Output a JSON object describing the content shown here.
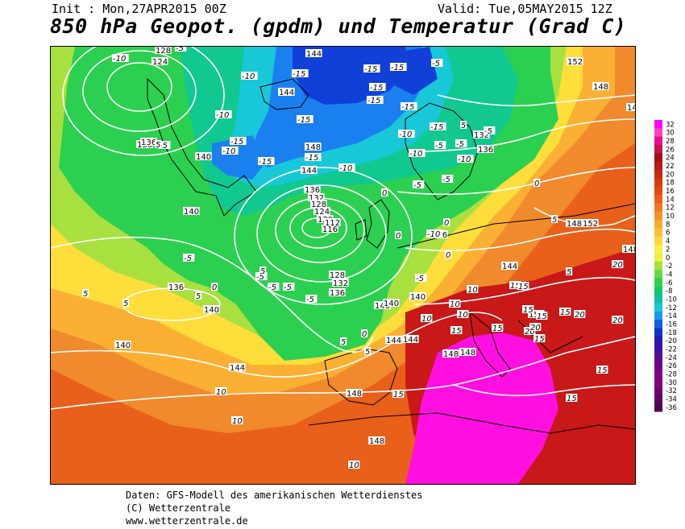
{
  "header": {
    "init": "Init : Mon,27APR2015 00Z",
    "valid": "Valid: Tue,05MAY2015 12Z",
    "title": "850 hPa Geopot. (gpdm) und Temperatur (Grad C)"
  },
  "footer": {
    "line1": "Daten: GFS-Modell des amerikanischen Wetterdienstes",
    "line2": "(C) Wetterzentrale",
    "line3": "www.wetterzentrale.de"
  },
  "legend": {
    "ticks": [
      "32",
      "30",
      "28",
      "26",
      "24",
      "22",
      "20",
      "18",
      "16",
      "14",
      "12",
      "10",
      "8",
      "6",
      "4",
      "2",
      "0",
      "-2",
      "-4",
      "-6",
      "-8",
      "-10",
      "-12",
      "-14",
      "-16",
      "-18",
      "-20",
      "-22",
      "-24",
      "-26",
      "-28",
      "-30",
      "-32",
      "-34",
      "-36"
    ],
    "colors": [
      "#ff00ff",
      "#ff40c0",
      "#e8108a",
      "#c81050",
      "#a01010",
      "#b81818",
      "#c82810",
      "#d83810",
      "#e04810",
      "#e86018",
      "#f07820",
      "#f89028",
      "#fba830",
      "#fdc038",
      "#ffd840",
      "#fff048",
      "#e8f040",
      "#a8e038",
      "#68d840",
      "#30d048",
      "#10c868",
      "#10c0a0",
      "#18c8d0",
      "#1898f0",
      "#1060e0",
      "#1030c8",
      "#2818b0",
      "#4010a0",
      "#580898",
      "#700090",
      "#800088",
      "#880080",
      "#700070",
      "#600060",
      "#500050"
    ]
  },
  "map": {
    "colors": {
      "background": "#e8601a",
      "orange": "#f08a2c",
      "yellow_orange": "#fbb034",
      "yellow": "#ffde3c",
      "lime": "#a8e040",
      "green": "#2cd050",
      "teal": "#10c890",
      "cyan": "#18c8d8",
      "blue": "#1a80f0",
      "deep_blue": "#1040d8",
      "red": "#c81818",
      "magenta": "#ff10e0",
      "contour": "#ffffff",
      "coast": "#000000"
    },
    "geopotential_labels": [
      {
        "t": "128"
      },
      {
        "t": "124"
      },
      {
        "t": "136"
      },
      {
        "t": "140"
      },
      {
        "t": "140"
      },
      {
        "t": "140"
      },
      {
        "t": "136"
      },
      {
        "t": "140"
      },
      {
        "t": "144"
      },
      {
        "t": "144"
      },
      {
        "t": "148"
      },
      {
        "t": "144"
      },
      {
        "t": "136"
      },
      {
        "t": "132"
      },
      {
        "t": "128"
      },
      {
        "t": "124"
      },
      {
        "t": "120"
      },
      {
        "t": "116"
      },
      {
        "t": "112"
      },
      {
        "t": "128"
      },
      {
        "t": "132"
      },
      {
        "t": "136"
      },
      {
        "t": "140"
      },
      {
        "t": "140"
      },
      {
        "t": "144"
      },
      {
        "t": "144"
      },
      {
        "t": "148"
      },
      {
        "t": "148"
      },
      {
        "t": "148"
      },
      {
        "t": "136"
      },
      {
        "t": "132"
      },
      {
        "t": "136"
      },
      {
        "t": "136"
      },
      {
        "t": "140"
      },
      {
        "t": "144"
      },
      {
        "t": "152"
      },
      {
        "t": "148"
      },
      {
        "t": "148"
      },
      {
        "t": "152"
      },
      {
        "t": "148"
      },
      {
        "t": "152"
      },
      {
        "t": "148"
      },
      {
        "t": "148"
      },
      {
        "t": "144"
      }
    ],
    "temperature_labels": [
      {
        "t": "-10"
      },
      {
        "t": "-5"
      },
      {
        "t": "-5"
      },
      {
        "t": "-10"
      },
      {
        "t": "-15"
      },
      {
        "t": "-15"
      },
      {
        "t": "-10"
      },
      {
        "t": "-10"
      },
      {
        "t": "-15"
      },
      {
        "t": "-15"
      },
      {
        "t": "-15"
      },
      {
        "t": "-10"
      },
      {
        "t": "-15"
      },
      {
        "t": "-15"
      },
      {
        "t": "-15"
      },
      {
        "t": "-15"
      },
      {
        "t": "-15"
      },
      {
        "t": "-5"
      },
      {
        "t": "-15"
      },
      {
        "t": "-10"
      },
      {
        "t": "-10"
      },
      {
        "t": "-5"
      },
      {
        "t": "-10"
      },
      {
        "t": "-10"
      },
      {
        "t": "-5"
      },
      {
        "t": "-5"
      },
      {
        "t": "-5"
      },
      {
        "t": "-5"
      },
      {
        "t": "-5"
      },
      {
        "t": "-5"
      },
      {
        "t": "-5"
      },
      {
        "t": "-5"
      },
      {
        "t": "-5"
      },
      {
        "t": "-5"
      },
      {
        "t": "5"
      },
      {
        "t": "5"
      },
      {
        "t": "5"
      },
      {
        "t": "5"
      },
      {
        "t": "5"
      },
      {
        "t": "0"
      },
      {
        "t": "0"
      },
      {
        "t": "0"
      },
      {
        "t": "0"
      },
      {
        "t": "0"
      },
      {
        "t": "0"
      },
      {
        "t": "0"
      },
      {
        "t": "5"
      },
      {
        "t": "5"
      },
      {
        "t": "5"
      },
      {
        "t": "5"
      },
      {
        "t": "10"
      },
      {
        "t": "10"
      },
      {
        "t": "10"
      },
      {
        "t": "10"
      },
      {
        "t": "10"
      },
      {
        "t": "10"
      },
      {
        "t": "15"
      },
      {
        "t": "15"
      },
      {
        "t": "15"
      },
      {
        "t": "15"
      },
      {
        "t": "15"
      },
      {
        "t": "15"
      },
      {
        "t": "15"
      },
      {
        "t": "15"
      },
      {
        "t": "20"
      },
      {
        "t": "20"
      },
      {
        "t": "20"
      },
      {
        "t": "20"
      },
      {
        "t": "20"
      },
      {
        "t": "15"
      },
      {
        "t": "5"
      },
      {
        "t": "10"
      },
      {
        "t": "15"
      },
      {
        "t": "15"
      }
    ]
  }
}
